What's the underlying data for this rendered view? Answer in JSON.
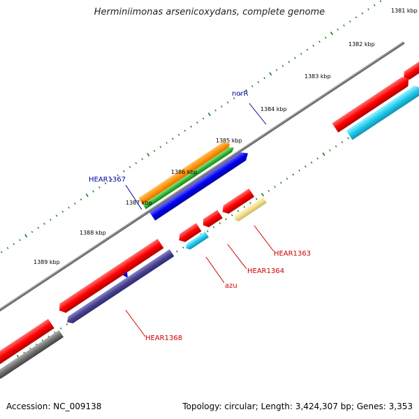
{
  "title": "Herminiimonas arsenicoxydans, complete genome",
  "footer": {
    "accession": "Accession: NC_009138",
    "summary": "Topology: circular; Length: 3,424,307 bp; Genes: 3,353"
  },
  "scale_labels": [
    "1381 kbp",
    "1382 kbp",
    "1383 kbp",
    "1384 kbp",
    "1385 kbp",
    "1386 kbp",
    "1387 kbp",
    "1388 kbp",
    "1389 kbp"
  ],
  "gene_labels": {
    "norR": "norR",
    "hear1367": "HEAR1367",
    "hear1363": "HEAR1363",
    "hear1364": "HEAR1364",
    "azu": "azu",
    "hear1368": "HEAR1368"
  },
  "colors": {
    "backbone": "#808080",
    "forward_gene": "#ff0000",
    "reverse_gene": "#ff0000",
    "tick": "#1a7a1a",
    "label_red": "#cc0000",
    "label_blue": "#00009c"
  }
}
